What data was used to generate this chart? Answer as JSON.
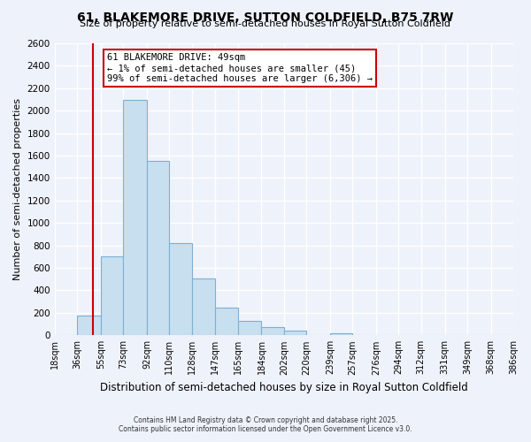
{
  "title": "61, BLAKEMORE DRIVE, SUTTON COLDFIELD, B75 7RW",
  "subtitle": "Size of property relative to semi-detached houses in Royal Sutton Coldfield",
  "xlabel": "Distribution of semi-detached houses by size in Royal Sutton Coldfield",
  "ylabel": "Number of semi-detached properties",
  "bin_labels": [
    "18sqm",
    "36sqm",
    "55sqm",
    "73sqm",
    "92sqm",
    "110sqm",
    "128sqm",
    "147sqm",
    "165sqm",
    "184sqm",
    "202sqm",
    "220sqm",
    "239sqm",
    "257sqm",
    "276sqm",
    "294sqm",
    "312sqm",
    "331sqm",
    "349sqm",
    "368sqm",
    "386sqm"
  ],
  "bin_edges": [
    18,
    36,
    55,
    73,
    92,
    110,
    128,
    147,
    165,
    184,
    202,
    220,
    239,
    257,
    276,
    294,
    312,
    331,
    349,
    368,
    386
  ],
  "bar_heights": [
    0,
    175,
    700,
    2100,
    1550,
    820,
    510,
    250,
    130,
    75,
    40,
    0,
    20,
    0,
    0,
    0,
    0,
    0,
    0,
    0
  ],
  "bar_color": "#c8dff0",
  "bar_edge_color": "#7eafd4",
  "property_line_x": 49,
  "property_line_color": "#cc0000",
  "annotation_title": "61 BLAKEMORE DRIVE: 49sqm",
  "annotation_line1": "← 1% of semi-detached houses are smaller (45)",
  "annotation_line2": "99% of semi-detached houses are larger (6,306) →",
  "annotation_box_color": "#ffffff",
  "annotation_box_edge": "#cc0000",
  "ylim": [
    0,
    2600
  ],
  "yticks": [
    0,
    200,
    400,
    600,
    800,
    1000,
    1200,
    1400,
    1600,
    1800,
    2000,
    2200,
    2400,
    2600
  ],
  "footer_line1": "Contains HM Land Registry data © Crown copyright and database right 2025.",
  "footer_line2": "Contains public sector information licensed under the Open Government Licence v3.0.",
  "background_color": "#eef2fa",
  "grid_color": "#ffffff"
}
